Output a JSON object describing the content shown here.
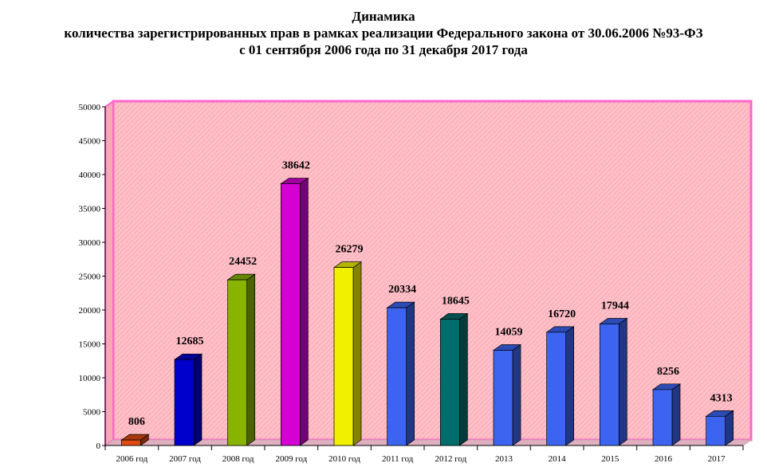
{
  "chart_data": {
    "type": "bar",
    "title": "Динамика",
    "subtitle_lines": [
      "количества зарегистрированных прав в рамках реализации Федерального закона от 30.06.2006 №93-ФЗ",
      "с 01 сентября 2006 года по 31 декабря 2017 года"
    ],
    "categories": [
      "2006 год",
      "2007 год",
      "2008 год",
      "2009 год",
      "2010 год",
      "2011 год",
      "2012 год",
      "2013",
      "2014",
      "2015",
      "2016",
      "2017"
    ],
    "values": [
      806,
      12685,
      24452,
      38642,
      26279,
      20334,
      18645,
      14059,
      16720,
      17944,
      8256,
      4313
    ],
    "bar_colors": [
      "#e04a12",
      "#0000cc",
      "#88b400",
      "#d400d4",
      "#f0f000",
      "#3c64f0",
      "#006c6c",
      "#3c64f0",
      "#3c64f0",
      "#3c64f0",
      "#3c64f0",
      "#3c64f0"
    ],
    "ylim": [
      0,
      50000
    ],
    "yticks": [
      0,
      5000,
      10000,
      15000,
      20000,
      25000,
      30000,
      35000,
      40000,
      45000,
      50000
    ],
    "xlabel": "",
    "ylabel": "",
    "grid": false,
    "legend": "none",
    "plot_background": "#ffc0c8",
    "wall_border": "#ff66cc",
    "floor_color": "#e0b0c0"
  }
}
